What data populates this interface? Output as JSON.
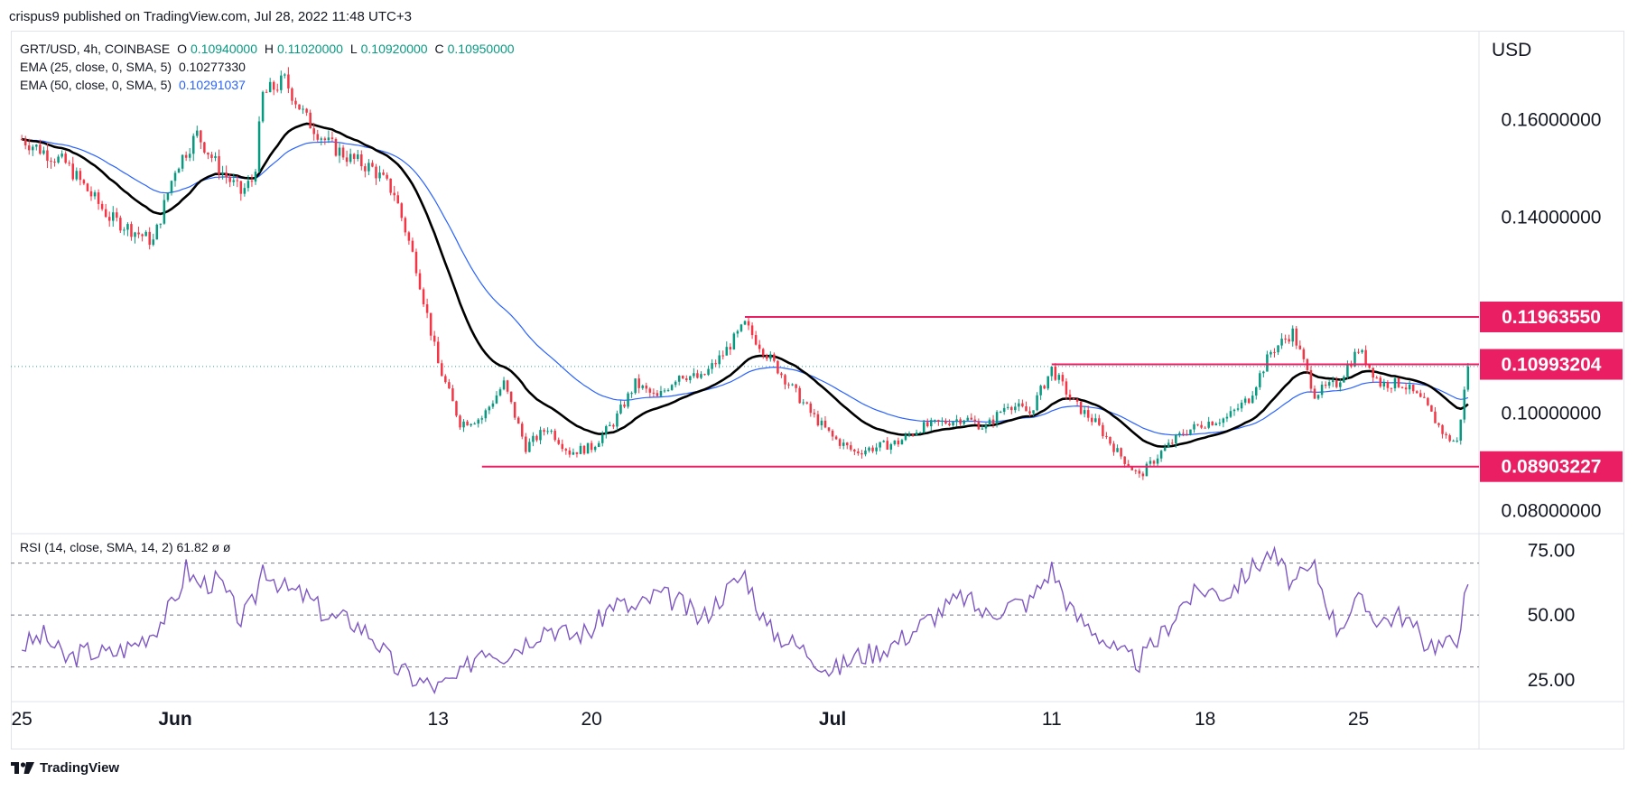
{
  "header": {
    "published": "crispus9 published on TradingView.com, Jul 28, 2022 11:48 UTC+3"
  },
  "legend": {
    "symbol": "GRT/USD, 4h, COINBASE",
    "o_label": "O",
    "o_value": "0.10940000",
    "h_label": "H",
    "h_value": "0.11020000",
    "l_label": "L",
    "l_value": "0.10920000",
    "c_label": "C",
    "c_value": "0.10950000",
    "ema25_label": "EMA (25, close, 0, SMA, 5)",
    "ema25_value": "0.10277330",
    "ema50_label": "EMA (50, close, 0, SMA, 5)",
    "ema50_value": "0.10291037"
  },
  "rsi_legend": {
    "label": "RSI (14, close, SMA, 14, 2)",
    "value": "61.82",
    "extra1": "ø",
    "extra2": "ø"
  },
  "footer": {
    "brand": "TradingView"
  },
  "colors": {
    "up": "#089981",
    "down": "#f23645",
    "ema25": "#000000",
    "ema50": "#2962ff",
    "rsi": "#7e57c2",
    "level": "#e91e63",
    "badge": "#e91e63",
    "last_price_line": "#26a69a"
  },
  "chart_data": [
    {
      "type": "candlestick",
      "currency_label": "USD",
      "y_ticks": [
        "0.16000000",
        "0.14000000",
        "0.10000000",
        "0.08000000"
      ],
      "y_tick_values": [
        0.16,
        0.14,
        0.1,
        0.08
      ],
      "ylim": [
        0.0755,
        0.1778
      ],
      "x_ticks": [
        "25",
        "Jun",
        "13",
        "20",
        "Jul",
        "11",
        "18",
        "25"
      ],
      "x_tick_days": [
        0,
        7,
        19,
        26,
        37,
        47,
        54,
        61
      ],
      "x_range_days": [
        -0.5,
        66.5
      ],
      "last_close_day": 65,
      "horizontal_levels": [
        {
          "label": "0.11963550",
          "value": 0.1196355,
          "from_day": 33
        },
        {
          "label": "0.10993204",
          "value": 0.10993204,
          "from_day": 47
        },
        {
          "label": "0.08903227",
          "value": 0.08903227,
          "from_day": 21
        }
      ],
      "last_price": 0.1095,
      "close_path": [
        [
          0,
          0.156
        ],
        [
          2,
          0.151
        ],
        [
          4,
          0.14
        ],
        [
          6,
          0.135
        ],
        [
          7,
          0.15
        ],
        [
          8,
          0.157
        ],
        [
          9,
          0.15
        ],
        [
          10,
          0.145
        ],
        [
          10.6,
          0.148
        ],
        [
          11,
          0.165
        ],
        [
          12,
          0.168
        ],
        [
          13,
          0.16
        ],
        [
          14,
          0.155
        ],
        [
          15,
          0.152
        ],
        [
          16,
          0.15
        ],
        [
          17,
          0.145
        ],
        [
          18,
          0.13
        ],
        [
          19,
          0.11
        ],
        [
          20,
          0.098
        ],
        [
          21,
          0.099
        ],
        [
          22,
          0.106
        ],
        [
          23,
          0.093
        ],
        [
          24,
          0.097
        ],
        [
          25,
          0.092
        ],
        [
          26,
          0.093
        ],
        [
          27,
          0.098
        ],
        [
          28,
          0.106
        ],
        [
          29,
          0.103
        ],
        [
          30,
          0.108
        ],
        [
          31,
          0.107
        ],
        [
          32,
          0.112
        ],
        [
          33,
          0.118
        ],
        [
          34,
          0.112
        ],
        [
          35,
          0.106
        ],
        [
          36,
          0.1
        ],
        [
          37,
          0.095
        ],
        [
          38,
          0.092
        ],
        [
          39,
          0.093
        ],
        [
          40,
          0.094
        ],
        [
          41,
          0.097
        ],
        [
          42,
          0.098
        ],
        [
          43,
          0.099
        ],
        [
          44,
          0.097
        ],
        [
          45,
          0.102
        ],
        [
          46,
          0.1
        ],
        [
          47,
          0.109
        ],
        [
          48,
          0.102
        ],
        [
          49,
          0.098
        ],
        [
          50,
          0.092
        ],
        [
          51,
          0.087
        ],
        [
          52,
          0.092
        ],
        [
          53,
          0.096
        ],
        [
          54,
          0.098
        ],
        [
          55,
          0.099
        ],
        [
          56,
          0.103
        ],
        [
          57,
          0.1125
        ],
        [
          58,
          0.1165
        ],
        [
          59,
          0.104
        ],
        [
          60,
          0.106
        ],
        [
          61,
          0.113
        ],
        [
          62,
          0.106
        ],
        [
          63,
          0.106
        ],
        [
          64,
          0.102
        ],
        [
          65,
          0.095
        ],
        [
          65.5,
          0.094
        ],
        [
          66,
          0.1095
        ]
      ]
    },
    {
      "type": "line",
      "name": "RSI",
      "y_ticks": [
        "75.00",
        "50.00",
        "25.00"
      ],
      "y_tick_values": [
        75,
        50,
        25
      ],
      "ylim": [
        17,
        81
      ],
      "band_levels": [
        70,
        50,
        30
      ],
      "values": [
        [
          0,
          38
        ],
        [
          1,
          42
        ],
        [
          2,
          33
        ],
        [
          3,
          36
        ],
        [
          4,
          35
        ],
        [
          5,
          38
        ],
        [
          6,
          44
        ],
        [
          7,
          55
        ],
        [
          7.5,
          68
        ],
        [
          8,
          62
        ],
        [
          9,
          63
        ],
        [
          10,
          48
        ],
        [
          10.6,
          55
        ],
        [
          11,
          69
        ],
        [
          12,
          60
        ],
        [
          13,
          57
        ],
        [
          14,
          49
        ],
        [
          15,
          48
        ],
        [
          16,
          42
        ],
        [
          17,
          30
        ],
        [
          18,
          25
        ],
        [
          19,
          22
        ],
        [
          20,
          26
        ],
        [
          21,
          38
        ],
        [
          22,
          35
        ],
        [
          23,
          40
        ],
        [
          24,
          46
        ],
        [
          25,
          42
        ],
        [
          26,
          44
        ],
        [
          27,
          55
        ],
        [
          28,
          52
        ],
        [
          29,
          58
        ],
        [
          30,
          55
        ],
        [
          31,
          48
        ],
        [
          32,
          58
        ],
        [
          33,
          66
        ],
        [
          34,
          45
        ],
        [
          35,
          40
        ],
        [
          36,
          35
        ],
        [
          37,
          28
        ],
        [
          38,
          34
        ],
        [
          39,
          36
        ],
        [
          40,
          40
        ],
        [
          41,
          46
        ],
        [
          42,
          52
        ],
        [
          43,
          57
        ],
        [
          44,
          50
        ],
        [
          45,
          54
        ],
        [
          46,
          55
        ],
        [
          47,
          68
        ],
        [
          48,
          50
        ],
        [
          49,
          44
        ],
        [
          50,
          35
        ],
        [
          51,
          32
        ],
        [
          52,
          42
        ],
        [
          53,
          55
        ],
        [
          54,
          60
        ],
        [
          55,
          58
        ],
        [
          56,
          67
        ],
        [
          57,
          74
        ],
        [
          58,
          62
        ],
        [
          59,
          68
        ],
        [
          60,
          45
        ],
        [
          61,
          55
        ],
        [
          62,
          48
        ],
        [
          63,
          50
        ],
        [
          64,
          40
        ],
        [
          65,
          38
        ],
        [
          65.5,
          42
        ],
        [
          66,
          61.8
        ]
      ]
    }
  ]
}
